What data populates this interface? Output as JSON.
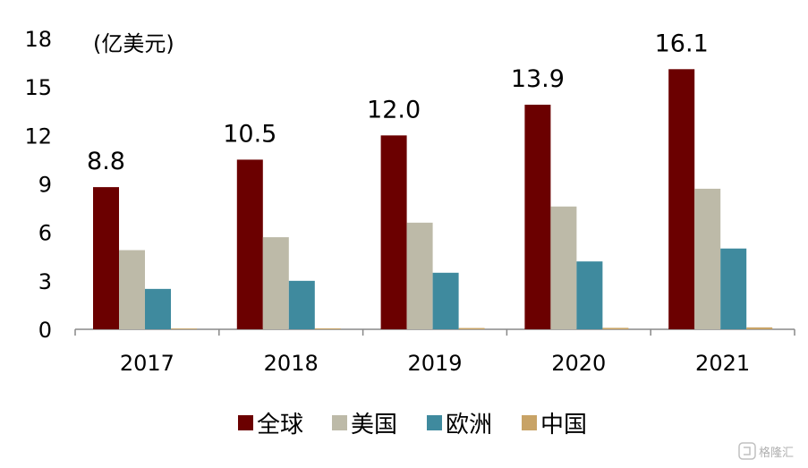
{
  "chart_data": {
    "type": "bar",
    "unit_label": "(亿美元)",
    "categories": [
      "2017",
      "2018",
      "2019",
      "2020",
      "2021"
    ],
    "ylim": [
      0,
      18
    ],
    "yticks": [
      0,
      3,
      6,
      9,
      12,
      15,
      18
    ],
    "legend_position": "bottom",
    "grid": false,
    "series": [
      {
        "name": "全球",
        "color": "#6b0000",
        "values": [
          8.8,
          10.5,
          12.0,
          13.9,
          16.1
        ],
        "labels": [
          "8.8",
          "10.5",
          "12.0",
          "13.9",
          "16.1"
        ]
      },
      {
        "name": "美国",
        "color": "#bdbaa8",
        "values": [
          4.9,
          5.7,
          6.6,
          7.6,
          8.7
        ]
      },
      {
        "name": "欧洲",
        "color": "#3f8a9e",
        "values": [
          2.5,
          3.0,
          3.5,
          4.2,
          5.0
        ]
      },
      {
        "name": "中国",
        "color": "#c8a366",
        "values": [
          0.05,
          0.06,
          0.08,
          0.09,
          0.12
        ]
      }
    ]
  },
  "watermark": {
    "text": "格隆汇",
    "icon": "ge-logo-icon"
  }
}
